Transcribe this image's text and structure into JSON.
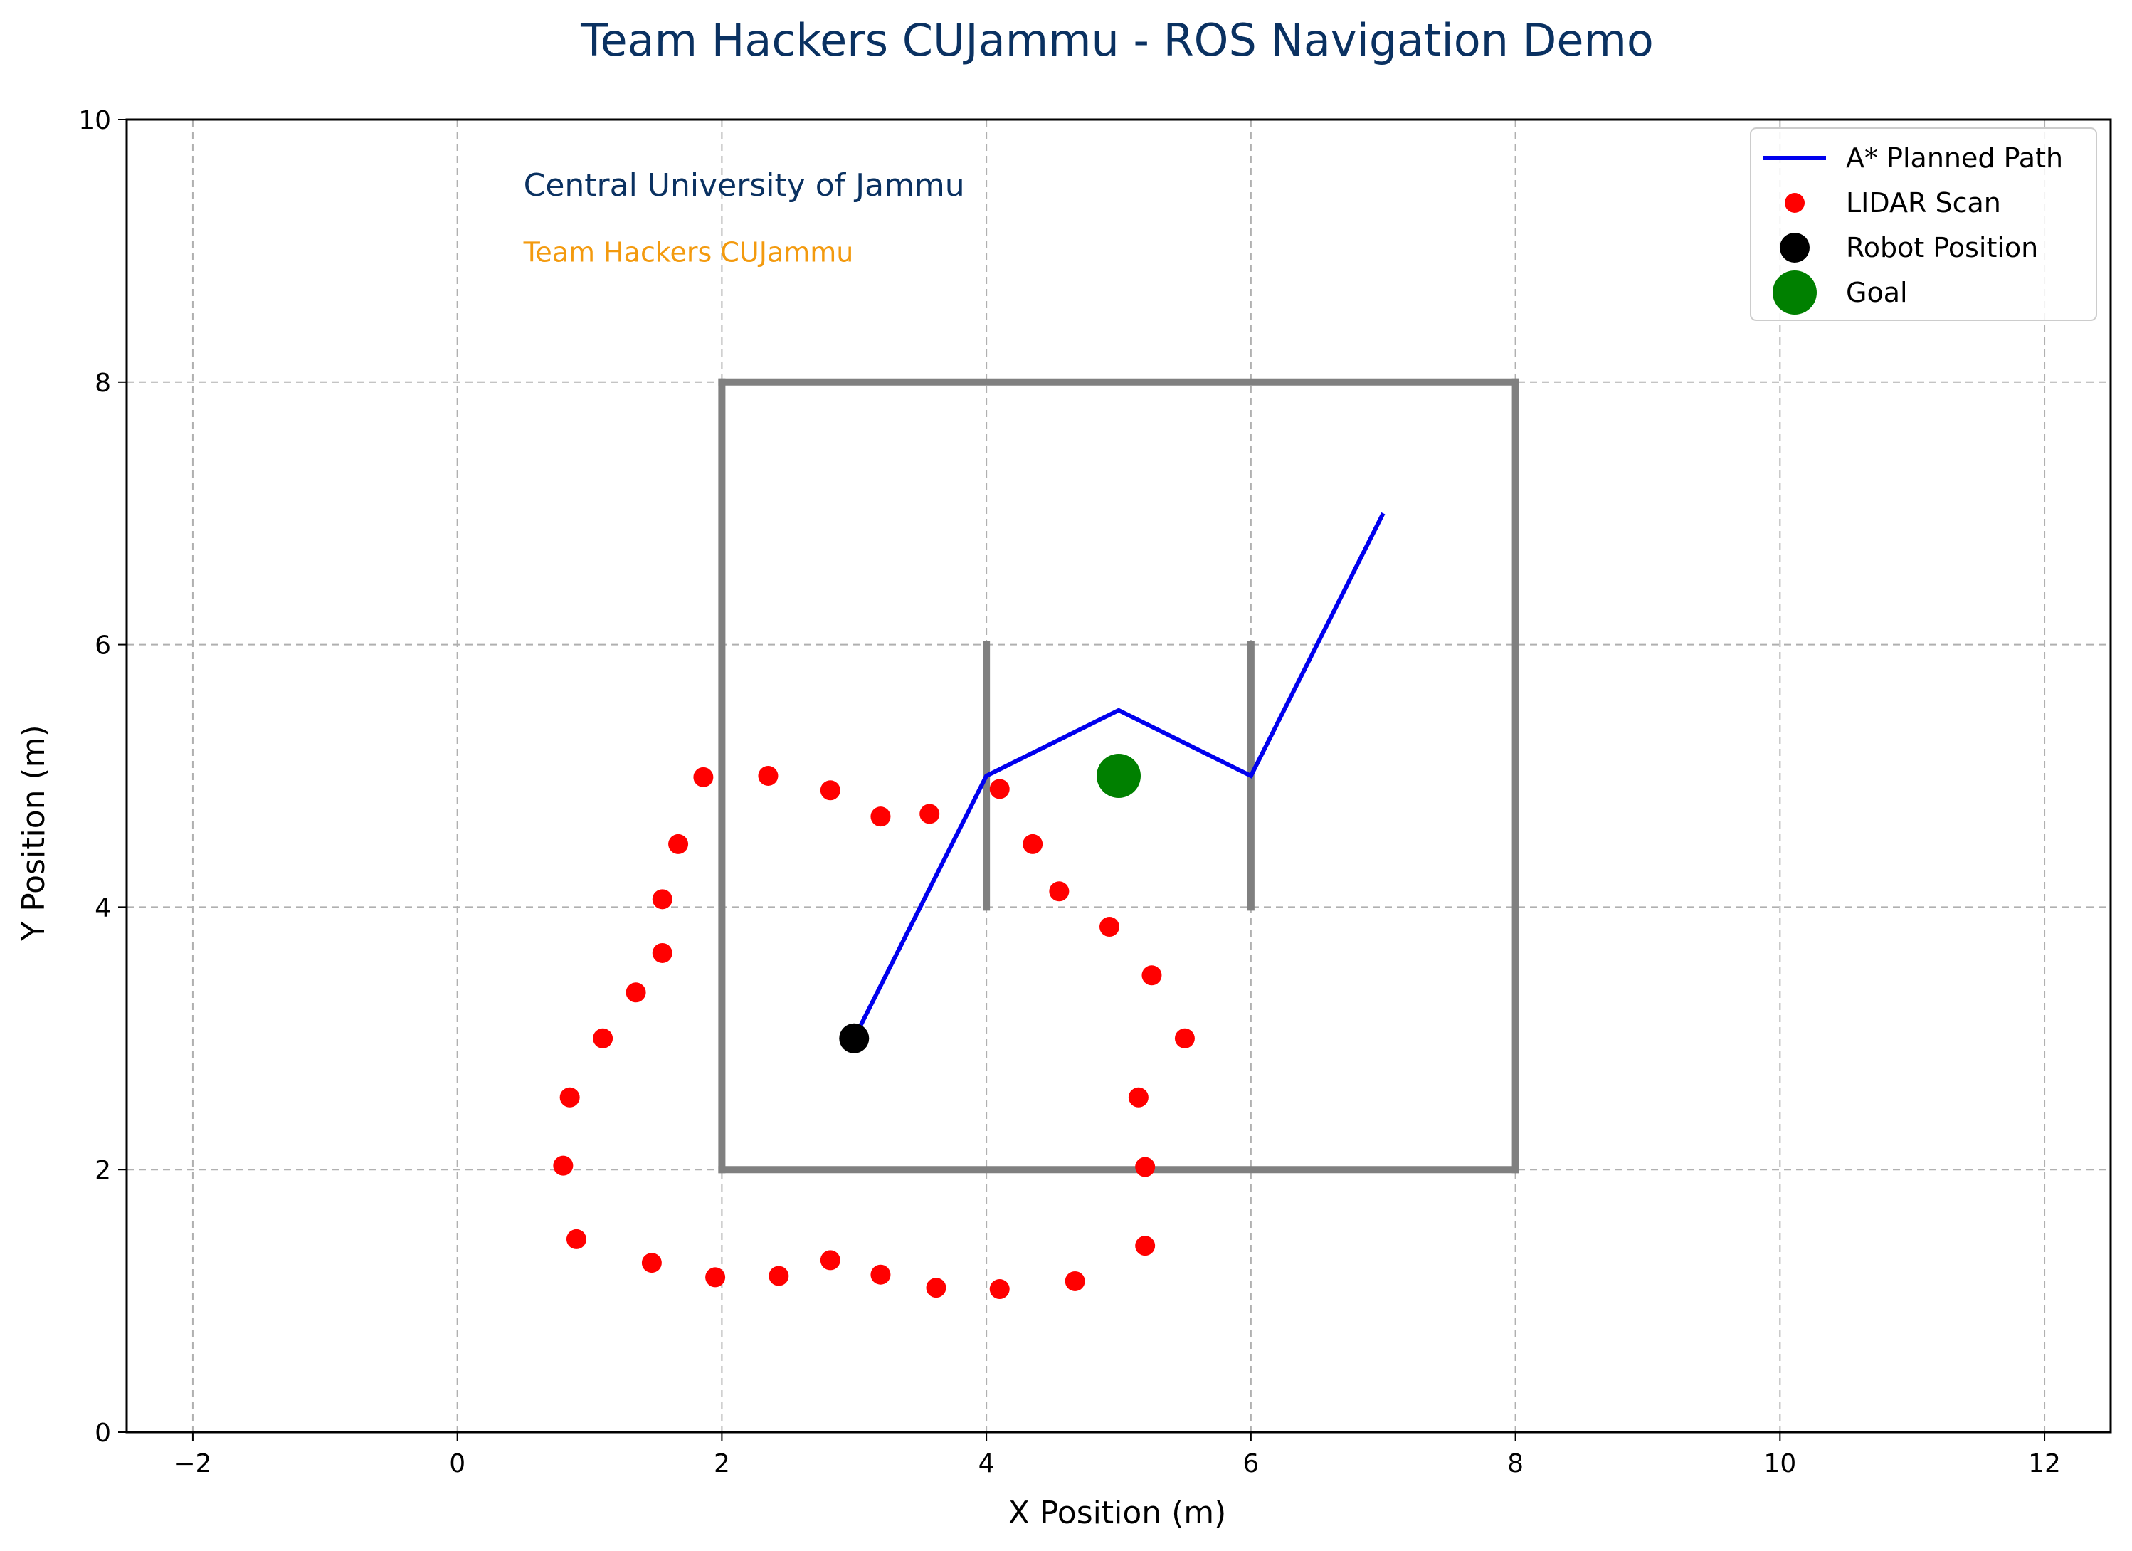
{
  "chart_data": {
    "type": "scatter",
    "title": "Team Hackers CUJammu - ROS Navigation Demo",
    "xlabel": "X Position (m)",
    "ylabel": "Y Position (m)",
    "xlim": [
      -2.5,
      12.5
    ],
    "ylim": [
      0,
      10
    ],
    "xticks": [
      -2,
      0,
      2,
      4,
      6,
      8,
      10,
      12
    ],
    "yticks": [
      0,
      2,
      4,
      6,
      8,
      10
    ],
    "grid": true,
    "legend_position": "top-right",
    "annotations": [
      {
        "text": "Central University of Jammu",
        "x": 0.5,
        "y": 9.5,
        "color": "#0a3161"
      },
      {
        "text": "Team Hackers CUJammu",
        "x": 0.5,
        "y": 9.0,
        "color": "#f39a0e"
      }
    ],
    "walls": {
      "color": "#808080",
      "segments": [
        [
          [
            2,
            2
          ],
          [
            8,
            2
          ]
        ],
        [
          [
            8,
            2
          ],
          [
            8,
            8
          ]
        ],
        [
          [
            8,
            8
          ],
          [
            2,
            8
          ]
        ],
        [
          [
            2,
            8
          ],
          [
            2,
            2
          ]
        ],
        [
          [
            4,
            4
          ],
          [
            4,
            6
          ]
        ],
        [
          [
            6,
            4
          ],
          [
            6,
            6
          ]
        ]
      ]
    },
    "series": [
      {
        "name": "A* Planned Path",
        "kind": "line",
        "color": "#0000ee",
        "points": [
          [
            3,
            3
          ],
          [
            4,
            5
          ],
          [
            5,
            5.5
          ],
          [
            6,
            5
          ],
          [
            7,
            7
          ]
        ]
      },
      {
        "name": "LIDAR Scan",
        "kind": "scatter",
        "color": "#ff0000",
        "points": [
          [
            5.5,
            3.0
          ],
          [
            5.25,
            3.48
          ],
          [
            4.93,
            3.85
          ],
          [
            4.55,
            4.12
          ],
          [
            4.35,
            4.48
          ],
          [
            4.1,
            4.9
          ],
          [
            3.57,
            4.71
          ],
          [
            3.2,
            4.69
          ],
          [
            2.82,
            4.89
          ],
          [
            2.35,
            5.0
          ],
          [
            1.86,
            4.99
          ],
          [
            1.67,
            4.48
          ],
          [
            1.55,
            4.06
          ],
          [
            1.55,
            3.65
          ],
          [
            1.35,
            3.35
          ],
          [
            1.1,
            3.0
          ],
          [
            0.85,
            2.55
          ],
          [
            0.8,
            2.03
          ],
          [
            0.9,
            1.47
          ],
          [
            1.47,
            1.29
          ],
          [
            1.95,
            1.18
          ],
          [
            2.43,
            1.19
          ],
          [
            2.82,
            1.31
          ],
          [
            3.2,
            1.2
          ],
          [
            3.62,
            1.1
          ],
          [
            4.1,
            1.09
          ],
          [
            4.67,
            1.15
          ],
          [
            5.2,
            1.42
          ],
          [
            5.2,
            2.02
          ],
          [
            5.15,
            2.55
          ]
        ]
      },
      {
        "name": "Robot Position",
        "kind": "marker",
        "color": "#000000",
        "points": [
          [
            3,
            3
          ]
        ]
      },
      {
        "name": "Goal",
        "kind": "marker",
        "color": "#008000",
        "points": [
          [
            5,
            5
          ]
        ]
      }
    ]
  }
}
